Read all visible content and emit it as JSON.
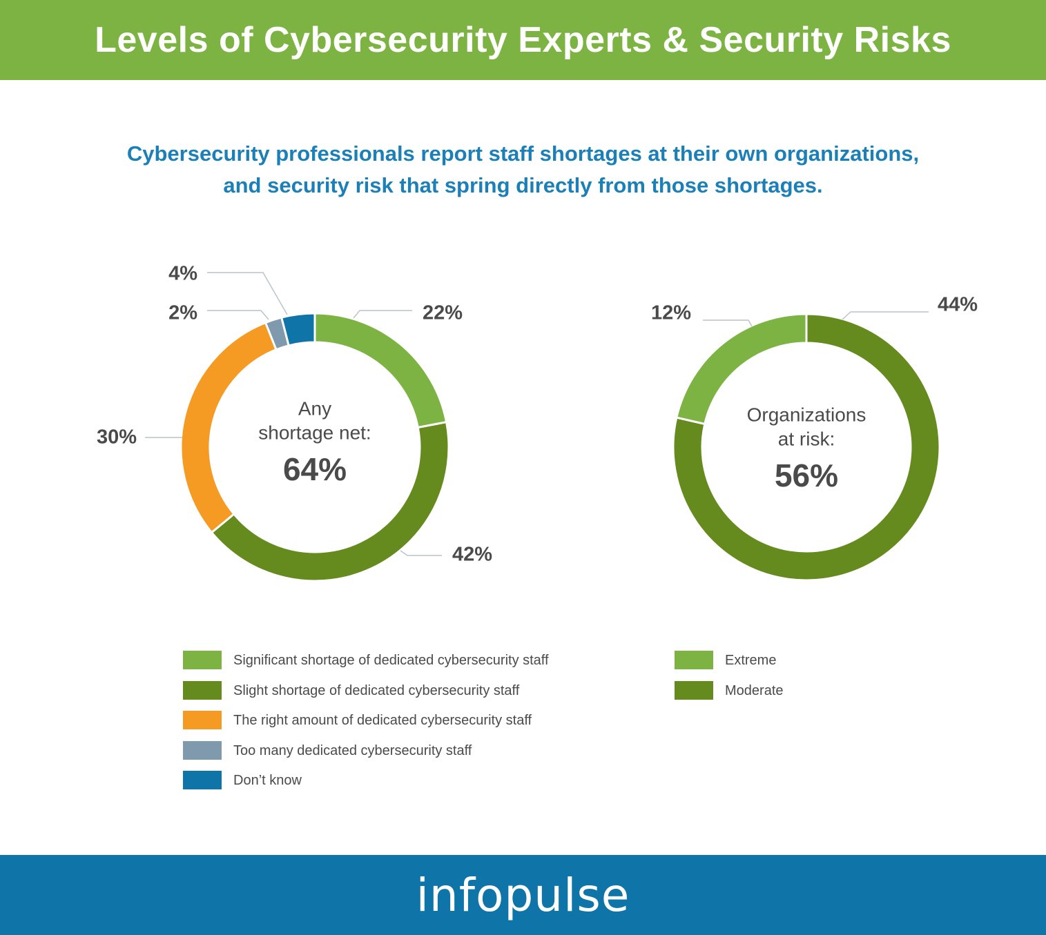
{
  "header": {
    "title": "Levels of Cybersecurity Experts & Security Risks"
  },
  "subtitle": {
    "line1": "Cybersecurity professionals report staff shortages at their own organizations,",
    "line2": "and security risk that spring directly from those shortages."
  },
  "colors": {
    "header_bg": "#7cb342",
    "footer_bg": "#0f75a8",
    "subtitle": "#1b7fb8",
    "light_green": "#7cb342",
    "dark_green": "#658a1e",
    "orange": "#f59a23",
    "gray_blue": "#7f99ad",
    "blue": "#0f75a8"
  },
  "chart_data": [
    {
      "type": "pie",
      "variant": "donut",
      "center_label": [
        "Any",
        "shortage net:"
      ],
      "center_value": "64%",
      "slices": [
        {
          "label": "Significant shortage of dedicated cybersecurity staff",
          "value": 22,
          "display": "22%",
          "color": "#7cb342"
        },
        {
          "label": "Slight shortage of dedicated cybersecurity staff",
          "value": 42,
          "display": "42%",
          "color": "#658a1e"
        },
        {
          "label": "The right amount of dedicated cybersecurity staff",
          "value": 30,
          "display": "30%",
          "color": "#f59a23"
        },
        {
          "label": "Too many dedicated cybersecurity staff",
          "value": 2,
          "display": "2%",
          "color": "#7f99ad"
        },
        {
          "label": "Don’t know",
          "value": 4,
          "display": "4%",
          "color": "#0f75a8"
        }
      ]
    },
    {
      "type": "pie",
      "variant": "donut",
      "center_label": [
        "Organizations",
        "at risk:"
      ],
      "center_value": "56%",
      "slices": [
        {
          "label": "Moderate",
          "value": 44,
          "display": "44%",
          "color": "#658a1e"
        },
        {
          "label": "Extreme",
          "value": 12,
          "display": "12%",
          "color": "#7cb342"
        }
      ],
      "legend_order": [
        "Extreme",
        "Moderate"
      ]
    }
  ],
  "footer": {
    "brand": "infopulse"
  }
}
